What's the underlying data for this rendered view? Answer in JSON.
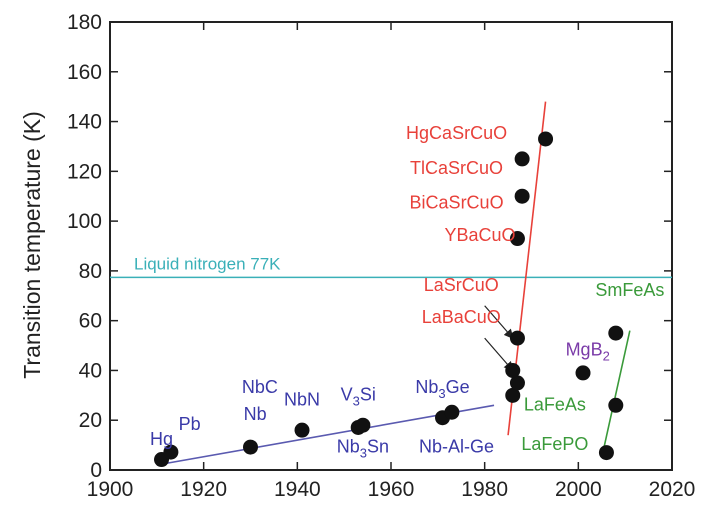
{
  "chart_data": {
    "type": "scatter",
    "title": "",
    "xlabel": "",
    "ylabel": "Transition temperature (K)",
    "xlim": [
      1900,
      2020
    ],
    "ylim": [
      0,
      180
    ],
    "x_ticks": [
      1900,
      1920,
      1940,
      1960,
      1980,
      2000,
      2020
    ],
    "y_ticks": [
      0,
      20,
      40,
      60,
      80,
      100,
      120,
      140,
      160,
      180
    ],
    "grid": false,
    "reference_line": {
      "label": "Liquid nitrogen 77K",
      "y": 77.4,
      "color": "#3ab0b8"
    },
    "points": [
      {
        "x": 1911,
        "y": 4.2
      },
      {
        "x": 1913,
        "y": 7.2
      },
      {
        "x": 1930,
        "y": 9.2
      },
      {
        "x": 1941,
        "y": 16
      },
      {
        "x": 1953,
        "y": 17.1
      },
      {
        "x": 1954,
        "y": 18
      },
      {
        "x": 1971,
        "y": 21
      },
      {
        "x": 1973,
        "y": 23.2
      },
      {
        "x": 1986,
        "y": 30
      },
      {
        "x": 1987,
        "y": 35
      },
      {
        "x": 1986,
        "y": 40
      },
      {
        "x": 1987,
        "y": 53
      },
      {
        "x": 1987,
        "y": 93
      },
      {
        "x": 1988,
        "y": 110
      },
      {
        "x": 1988,
        "y": 125
      },
      {
        "x": 1993,
        "y": 133
      },
      {
        "x": 2001,
        "y": 39
      },
      {
        "x": 2006,
        "y": 7
      },
      {
        "x": 2008,
        "y": 26
      },
      {
        "x": 2008,
        "y": 55
      }
    ],
    "trend_lines": [
      {
        "color": "#5a5ab0",
        "points": [
          [
            1910,
            2
          ],
          [
            1982,
            26
          ]
        ]
      },
      {
        "color": "#e8413a",
        "points": [
          [
            1985,
            14
          ],
          [
            1993,
            148
          ]
        ]
      },
      {
        "color": "#3a9a3a",
        "points": [
          [
            2005,
            5
          ],
          [
            2011,
            56
          ]
        ]
      }
    ],
    "labels": [
      {
        "text": "Hg",
        "x": 1911,
        "y": 10,
        "color": "#3a3aa8"
      },
      {
        "text": "Pb",
        "x": 1917,
        "y": 16,
        "color": "#3a3aa8"
      },
      {
        "text": "Nb",
        "x": 1931,
        "y": 20,
        "color": "#3a3aa8"
      },
      {
        "text": "NbC",
        "x": 1932,
        "y": 31,
        "color": "#3a3aa8"
      },
      {
        "text": "NbN",
        "x": 1941,
        "y": 26,
        "color": "#3a3aa8"
      },
      {
        "text": "V",
        "x": 1953,
        "y": 28,
        "color": "#3a3aa8",
        "sub": "3",
        "tail": "Si"
      },
      {
        "text": "Nb",
        "x": 1954,
        "y": 7,
        "color": "#3a3aa8",
        "sub": "3",
        "tail": "Sn"
      },
      {
        "text": "Nb",
        "x": 1971,
        "y": 31,
        "color": "#3a3aa8",
        "sub": "3",
        "tail": "Ge"
      },
      {
        "text": "Nb-Al-Ge",
        "x": 1974,
        "y": 7,
        "color": "#3a3aa8"
      },
      {
        "text": "HgCaSrCuO",
        "x": 1974,
        "y": 133,
        "color": "#e8413a"
      },
      {
        "text": "TlCaSrCuO",
        "x": 1974,
        "y": 119,
        "color": "#e8413a"
      },
      {
        "text": "BiCaSrCuO",
        "x": 1974,
        "y": 105,
        "color": "#e8413a"
      },
      {
        "text": "YBaCuO",
        "x": 1979,
        "y": 92,
        "color": "#e8413a"
      },
      {
        "text": "LaSrCuO",
        "x": 1975,
        "y": 72,
        "color": "#e8413a"
      },
      {
        "text": "LaBaCuO",
        "x": 1975,
        "y": 59,
        "color": "#e8413a"
      },
      {
        "text": "MgB",
        "x": 2002,
        "y": 46,
        "color": "#7a3aa8",
        "sub": "2",
        "tail": ""
      },
      {
        "text": "SmFeAs",
        "x": 2011,
        "y": 70,
        "color": "#3a9a3a"
      },
      {
        "text": "LaFeAs",
        "x": 1995,
        "y": 24,
        "color": "#3a9a3a"
      },
      {
        "text": "LaFePO",
        "x": 1995,
        "y": 8,
        "color": "#3a9a3a"
      }
    ],
    "arrows": [
      {
        "from": [
          1980,
          66
        ],
        "to": [
          1986,
          53
        ]
      },
      {
        "from": [
          1980,
          53
        ],
        "to": [
          1986,
          40
        ]
      }
    ]
  }
}
